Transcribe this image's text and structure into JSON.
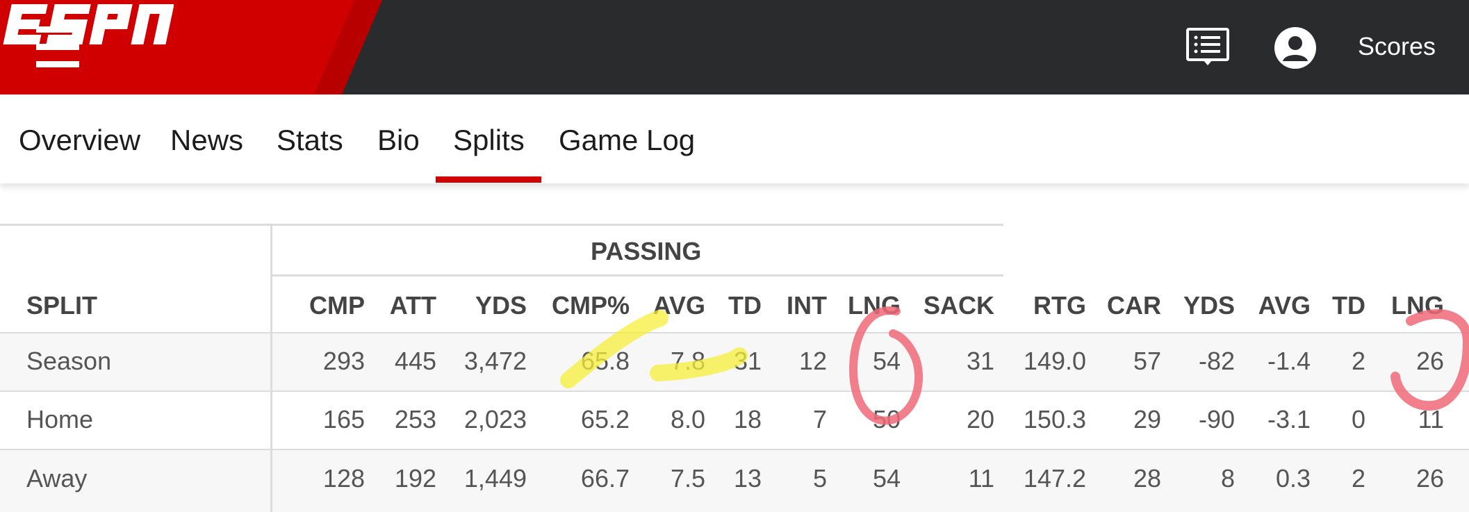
{
  "header": {
    "brand": "ESPN",
    "scores_label": "Scores",
    "icons": [
      "menu-icon",
      "espn-logo",
      "feed-icon",
      "user-account-icon"
    ],
    "colors": {
      "brand_red": "#d00000",
      "bar_dark": "#2a2b2d",
      "text_white": "#ffffff"
    }
  },
  "tabs": [
    {
      "label": "Overview",
      "active": false
    },
    {
      "label": "News",
      "active": false
    },
    {
      "label": "Stats",
      "active": false
    },
    {
      "label": "Bio",
      "active": false
    },
    {
      "label": "Splits",
      "active": true
    },
    {
      "label": "Game Log",
      "active": false
    }
  ],
  "table": {
    "group_header": "PASSING",
    "split_header": "SPLIT",
    "columns": [
      "CMP",
      "ATT",
      "YDS",
      "CMP%",
      "AVG",
      "TD",
      "INT",
      "LNG",
      "SACK",
      "RTG",
      "CAR",
      "YDS",
      "AVG",
      "TD",
      "LNG"
    ],
    "rows": [
      {
        "split": "Season",
        "values": [
          "293",
          "445",
          "3,472",
          "65.8",
          "7.8",
          "31",
          "12",
          "54",
          "31",
          "149.0",
          "57",
          "-82",
          "-1.4",
          "2",
          "26"
        ]
      },
      {
        "split": "Home",
        "values": [
          "165",
          "253",
          "2,023",
          "65.2",
          "8.0",
          "18",
          "7",
          "50",
          "20",
          "150.3",
          "29",
          "-90",
          "-3.1",
          "0",
          "11"
        ]
      },
      {
        "split": "Away",
        "values": [
          "128",
          "192",
          "1,449",
          "66.7",
          "7.5",
          "13",
          "5",
          "54",
          "11",
          "147.2",
          "28",
          "8",
          "0.3",
          "2",
          "26"
        ]
      }
    ]
  },
  "annotations": [
    {
      "type": "highlighter-stroke",
      "color": "#f5ef3a",
      "target": "Season CMP%"
    },
    {
      "type": "highlighter-stroke",
      "color": "#f5ef3a",
      "target": "Season AVG / TD"
    },
    {
      "type": "circle",
      "color": "#f06a78",
      "target": "Passing LNG column"
    },
    {
      "type": "circle",
      "color": "#f06a78",
      "target": "Rushing LNG column"
    }
  ]
}
